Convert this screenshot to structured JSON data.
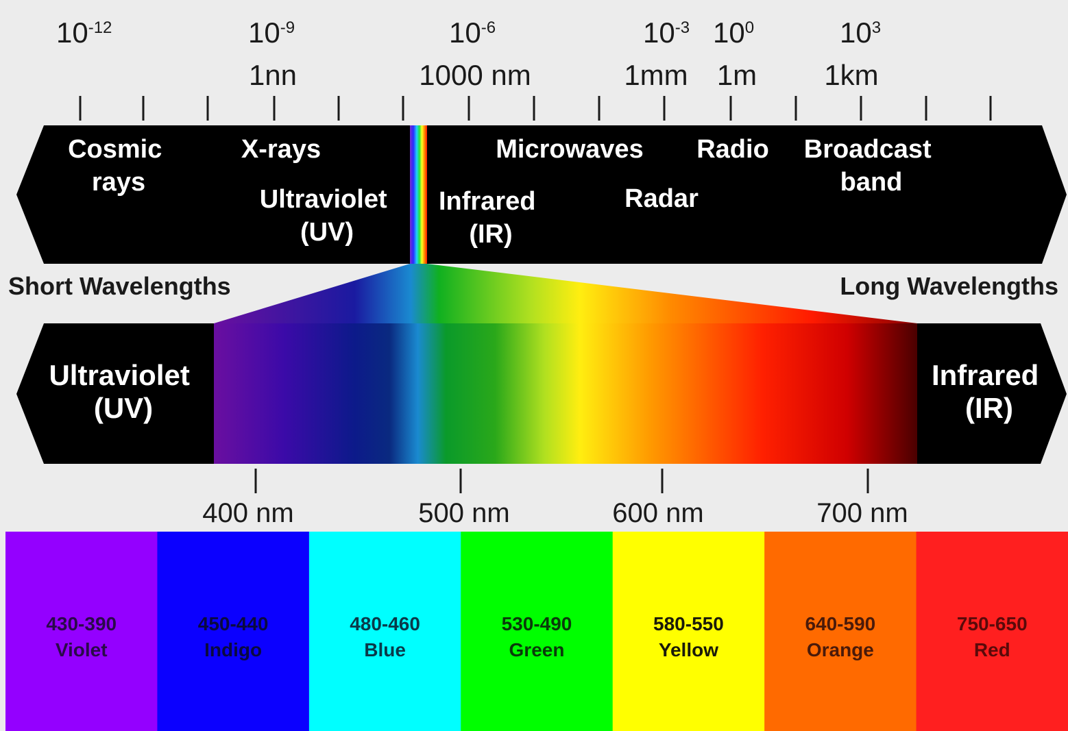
{
  "scale": {
    "ticks": [
      {
        "power": "10",
        "exp": "-12",
        "unit": ""
      },
      {
        "power": "10",
        "exp": "-9",
        "unit": "1nn"
      },
      {
        "power": "10",
        "exp": "-6",
        "unit": "1000 nm"
      },
      {
        "power": "10",
        "exp": "-3",
        "unit": "1mm"
      },
      {
        "power": "10",
        "exp": "0",
        "unit": "1m"
      },
      {
        "power": "10",
        "exp": "3",
        "unit": "1km"
      }
    ]
  },
  "em_bands": [
    {
      "lines": [
        "Cosmic",
        "rays"
      ]
    },
    {
      "lines": [
        "X-rays"
      ]
    },
    {
      "lines": [
        "Ultraviolet",
        "(UV)"
      ]
    },
    {
      "lines": [
        "Infrared",
        "(IR)"
      ]
    },
    {
      "lines": [
        "Microwaves"
      ]
    },
    {
      "lines": [
        "Radar"
      ]
    },
    {
      "lines": [
        "Radio"
      ]
    },
    {
      "lines": [
        "Broadcast",
        "band"
      ]
    }
  ],
  "wavelength_labels": {
    "short": "Short Wavelengths",
    "long": "Long Wavelengths"
  },
  "visible_bar": {
    "left_label": [
      "Ultraviolet",
      "(UV)"
    ],
    "right_label": [
      "Infrared",
      "(IR)"
    ],
    "nm_ticks": [
      {
        "label": "400 nm",
        "value": 400
      },
      {
        "label": "500 nm",
        "value": 500
      },
      {
        "label": "600 nm",
        "value": 600
      },
      {
        "label": "700 nm",
        "value": 700
      }
    ]
  },
  "color_bands": [
    {
      "range": "430-390",
      "name": "Violet",
      "fill": "#9400ff",
      "text": "#2a0a4a"
    },
    {
      "range": "450-440",
      "name": "Indigo",
      "fill": "#0b00ff",
      "text": "#0a0a40"
    },
    {
      "range": "480-460",
      "name": "Blue",
      "fill": "#00ffff",
      "text": "#0a3a4a"
    },
    {
      "range": "530-490",
      "name": "Green",
      "fill": "#00ff00",
      "text": "#0a3a0a"
    },
    {
      "range": "580-550",
      "name": "Yellow",
      "fill": "#ffff00",
      "text": "#1a1a0a"
    },
    {
      "range": "640-590",
      "name": "Orange",
      "fill": "#ff6a00",
      "text": "#4a1a0a"
    },
    {
      "range": "750-650",
      "name": "Red",
      "fill": "#ff1f1f",
      "text": "#5a0a0a"
    }
  ]
}
